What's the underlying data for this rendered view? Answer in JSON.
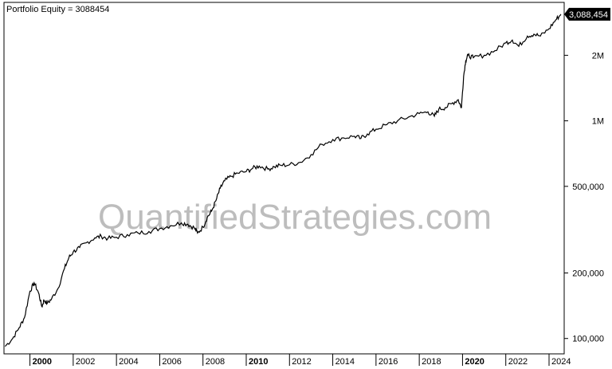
{
  "header": {
    "label": "Portfolio Equity = 3088454"
  },
  "watermark": "QuantifiedStrategies.com",
  "last_value_badge": "3,088,454",
  "colors": {
    "line": "#000000",
    "axis": "#000000",
    "watermark": "#bdbdbd",
    "badge": "#000000"
  },
  "chart_data": {
    "type": "line",
    "title": "",
    "xlabel": "",
    "ylabel": "",
    "y_scale": "log",
    "ylim": [
      85000,
      3500000
    ],
    "xlim": [
      1998.8,
      2024.7
    ],
    "grid": false,
    "x_ticks": [
      {
        "label": "2000",
        "value": 2000,
        "bold": true
      },
      {
        "label": "2002",
        "value": 2002,
        "bold": false
      },
      {
        "label": "2004",
        "value": 2004,
        "bold": false
      },
      {
        "label": "2006",
        "value": 2006,
        "bold": false
      },
      {
        "label": "2008",
        "value": 2008,
        "bold": false
      },
      {
        "label": "2010",
        "value": 2010,
        "bold": true
      },
      {
        "label": "2012",
        "value": 2012,
        "bold": false
      },
      {
        "label": "2014",
        "value": 2014,
        "bold": false
      },
      {
        "label": "2016",
        "value": 2016,
        "bold": false
      },
      {
        "label": "2018",
        "value": 2018,
        "bold": false
      },
      {
        "label": "2020",
        "value": 2020,
        "bold": true
      },
      {
        "label": "2022",
        "value": 2022,
        "bold": false
      },
      {
        "label": "2024",
        "value": 2024,
        "bold": false
      }
    ],
    "y_ticks": [
      {
        "label": "100,000",
        "value": 100000
      },
      {
        "label": "200,000",
        "value": 200000
      },
      {
        "label": "500,000",
        "value": 500000
      },
      {
        "label": "1M",
        "value": 1000000
      },
      {
        "label": "2M",
        "value": 2000000
      }
    ],
    "series": [
      {
        "x": [
          1998.85,
          1999.2,
          1999.5,
          1999.75,
          2000.0,
          2000.2,
          2000.4,
          2000.55,
          2000.65,
          2000.8,
          2001.0,
          2001.3,
          2001.6,
          2001.8,
          2002.0,
          2002.3,
          2002.6,
          2003.0,
          2003.3,
          2003.6,
          2004.0,
          2004.5,
          2005.0,
          2005.5,
          2006.0,
          2006.5,
          2007.0,
          2007.3,
          2007.6,
          2007.75,
          2008.0,
          2008.2,
          2008.4,
          2008.6,
          2008.8,
          2009.0,
          2009.3,
          2009.6,
          2010.0,
          2010.3,
          2010.6,
          2011.0,
          2011.3,
          2011.6,
          2012.0,
          2012.5,
          2013.0,
          2013.5,
          2014.0,
          2014.5,
          2015.0,
          2015.3,
          2015.6,
          2016.0,
          2016.5,
          2017.0,
          2017.5,
          2018.0,
          2018.4,
          2018.7,
          2018.9,
          2019.2,
          2019.5,
          2019.8,
          2019.95,
          2020.05,
          2020.15,
          2020.25,
          2020.5,
          2021.0,
          2021.5,
          2022.0,
          2022.3,
          2022.6,
          2023.0,
          2023.3,
          2023.6,
          2024.0,
          2024.3,
          2024.55
        ],
        "y": [
          92000,
          100000,
          112000,
          125000,
          165000,
          180000,
          162000,
          140000,
          150000,
          145000,
          152000,
          170000,
          210000,
          235000,
          250000,
          262000,
          275000,
          290000,
          295000,
          288000,
          292000,
          300000,
          305000,
          310000,
          320000,
          330000,
          340000,
          335000,
          322000,
          305000,
          325000,
          360000,
          385000,
          430000,
          490000,
          530000,
          555000,
          575000,
          585000,
          605000,
          620000,
          600000,
          615000,
          625000,
          628000,
          645000,
          700000,
          780000,
          820000,
          835000,
          850000,
          830000,
          870000,
          915000,
          960000,
          1000000,
          1040000,
          1080000,
          1100000,
          1050000,
          1130000,
          1150000,
          1200000,
          1250000,
          1150000,
          1600000,
          1900000,
          2000000,
          1950000,
          2000000,
          2100000,
          2280000,
          2350000,
          2200000,
          2450000,
          2500000,
          2450000,
          2650000,
          2900000,
          3088454
        ]
      }
    ]
  }
}
